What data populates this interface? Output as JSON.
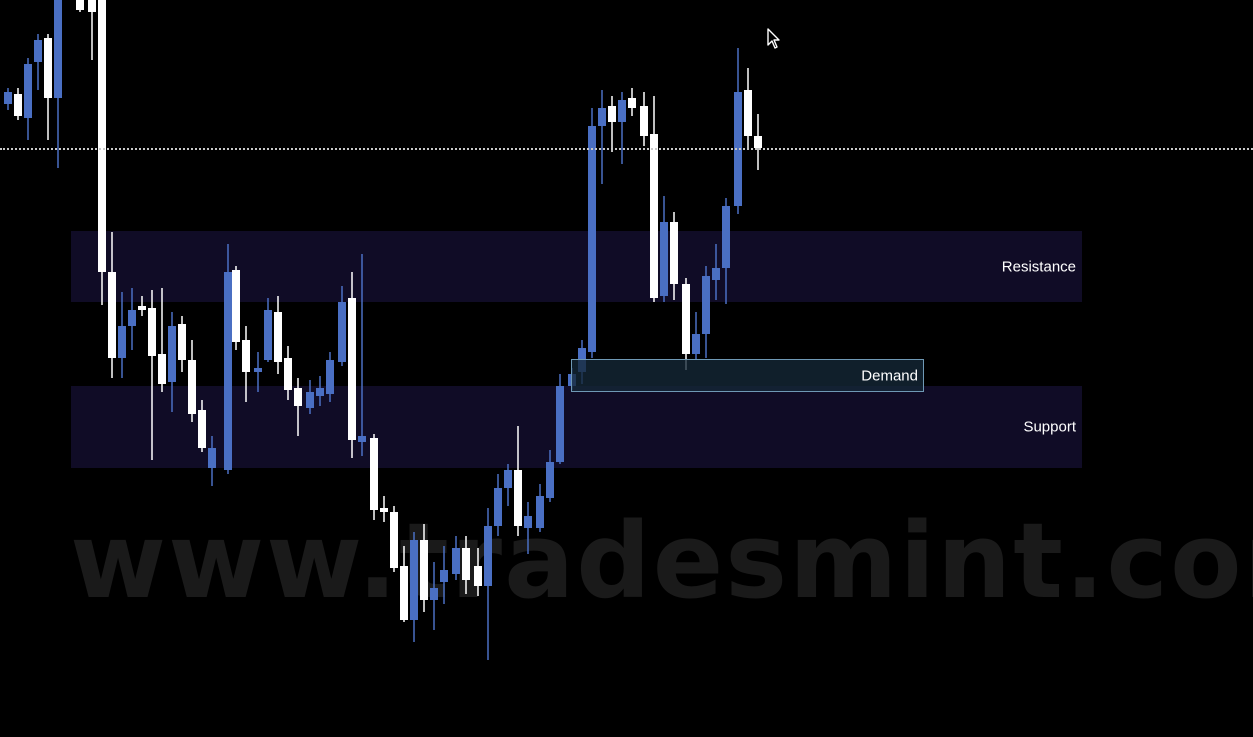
{
  "watermark": {
    "text": "www.tradesmint.com"
  },
  "zones": {
    "resistance_label": "Resistance",
    "support_label": "Support",
    "demand_label": "Demand"
  },
  "colors": {
    "background": "#000000",
    "bull_candle": "#ffffff",
    "bear_candle": "#4a6fc3",
    "zone_fill": "#100c26",
    "demand_border": "#6f99b5",
    "price_line": "#c9c9c9"
  }
}
